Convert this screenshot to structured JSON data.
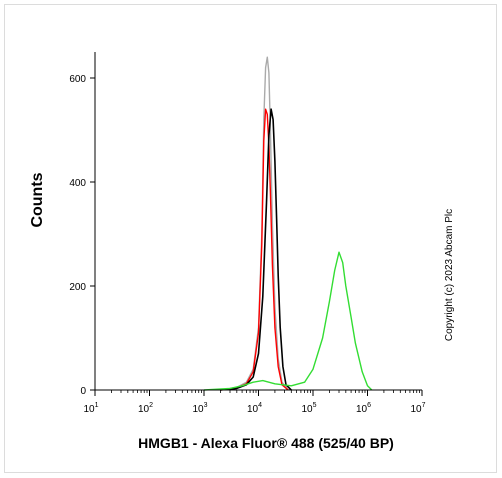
{
  "chart_data": {
    "type": "line",
    "xlabel": "HMGB1 - Alexa Fluor® 488  (525/40 BP)",
    "ylabel": "Counts",
    "copyright": "Copyright (c) 2023 Abcam Plc",
    "x_scale": "log",
    "xlim": [
      10,
      10000000
    ],
    "ylim": [
      0,
      650
    ],
    "x_ticks": [
      {
        "value": 10,
        "base": "10",
        "exp": "1"
      },
      {
        "value": 100,
        "base": "10",
        "exp": "2"
      },
      {
        "value": 1000,
        "base": "10",
        "exp": "3"
      },
      {
        "value": 10000,
        "base": "10",
        "exp": "4"
      },
      {
        "value": 100000,
        "base": "10",
        "exp": "5"
      },
      {
        "value": 1000000,
        "base": "10",
        "exp": "6"
      },
      {
        "value": 10000000,
        "base": "10",
        "exp": "7"
      }
    ],
    "y_ticks": [
      0,
      200,
      400,
      600
    ],
    "grid": false,
    "series": [
      {
        "color": "#aaaaaa",
        "x": [
          2000,
          4000,
          6000,
          8000,
          10000,
          11500,
          12500,
          13500,
          14500,
          15500,
          16500,
          18000,
          20000,
          23000,
          27000,
          35000
        ],
        "y": [
          0,
          5,
          15,
          40,
          120,
          300,
          520,
          620,
          640,
          610,
          500,
          320,
          160,
          60,
          15,
          0
        ]
      },
      {
        "color": "#ff0000",
        "x": [
          2000,
          4000,
          6000,
          8000,
          10000,
          11500,
          12500,
          13500,
          14500,
          15500,
          16500,
          18000,
          20000,
          23000,
          27000,
          35000
        ],
        "y": [
          0,
          4,
          12,
          35,
          110,
          280,
          480,
          540,
          530,
          470,
          380,
          240,
          120,
          45,
          10,
          0
        ]
      },
      {
        "color": "#000000",
        "x": [
          2000,
          4000,
          6000,
          8000,
          10000,
          12000,
          14000,
          15500,
          17000,
          18500,
          20000,
          21500,
          23000,
          25000,
          28000,
          32000,
          40000
        ],
        "y": [
          0,
          3,
          10,
          25,
          70,
          180,
          360,
          490,
          540,
          520,
          440,
          330,
          220,
          120,
          45,
          10,
          0
        ]
      },
      {
        "color": "#33dd33",
        "x": [
          1000,
          3000,
          5000,
          8000,
          12000,
          20000,
          40000,
          70000,
          100000,
          150000,
          200000,
          250000,
          300000,
          350000,
          400000,
          500000,
          600000,
          800000,
          1000000,
          1200000
        ],
        "y": [
          0,
          3,
          8,
          15,
          18,
          12,
          8,
          15,
          40,
          100,
          170,
          230,
          265,
          245,
          200,
          140,
          90,
          35,
          8,
          0
        ]
      }
    ]
  }
}
